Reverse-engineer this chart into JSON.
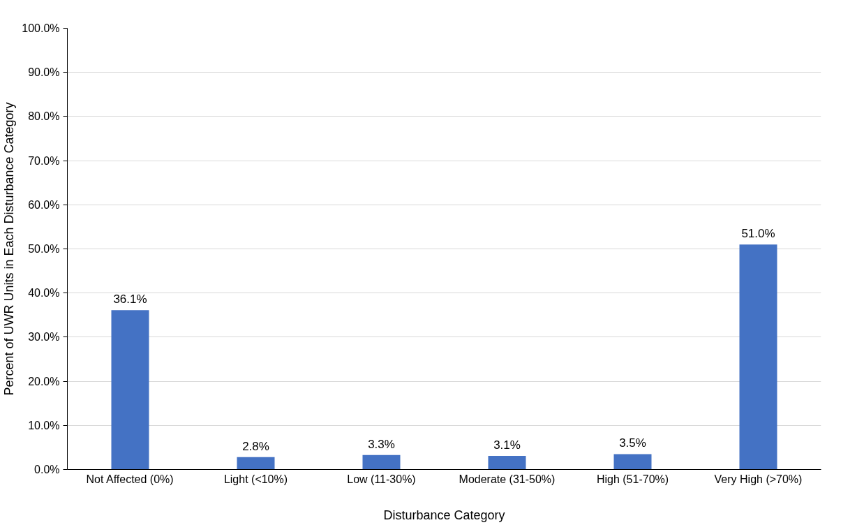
{
  "chart_data": {
    "type": "bar",
    "xlabel": "Disturbance Category",
    "ylabel": "Percent of UWR Units in Each Disturbance Category",
    "categories": [
      "Not Affected (0%)",
      "Light (<10%)",
      "Low (11-30%)",
      "Moderate (31-50%)",
      "High (51-70%)",
      "Very High (>70%)"
    ],
    "values": [
      36.1,
      2.8,
      3.3,
      3.1,
      3.5,
      51.0
    ],
    "value_labels": [
      "36.1%",
      "2.8%",
      "3.3%",
      "3.1%",
      "3.5%",
      "51.0%"
    ],
    "color": "#4472c4",
    "ylim": [
      0,
      100
    ],
    "yticks": [
      {
        "value": 0,
        "label": "0.0%"
      },
      {
        "value": 10,
        "label": "10.0%"
      },
      {
        "value": 20,
        "label": "20.0%"
      },
      {
        "value": 30,
        "label": "30.0%"
      },
      {
        "value": 40,
        "label": "40.0%"
      },
      {
        "value": 50,
        "label": "50.0%"
      },
      {
        "value": 60,
        "label": "60.0%"
      },
      {
        "value": 70,
        "label": "70.0%"
      },
      {
        "value": 80,
        "label": "80.0%"
      },
      {
        "value": 90,
        "label": "90.0%"
      },
      {
        "value": 100,
        "label": "100.0%"
      }
    ],
    "grid": "y"
  }
}
